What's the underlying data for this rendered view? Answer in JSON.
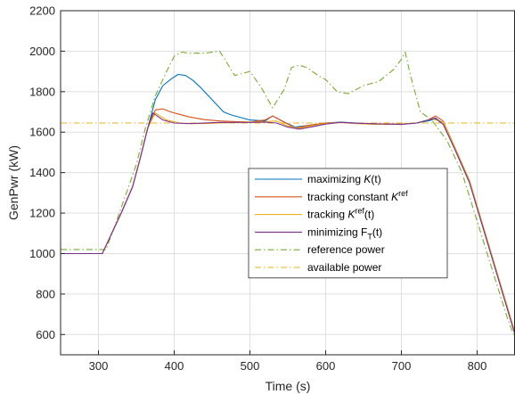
{
  "chart_data": {
    "type": "line",
    "title": "",
    "xlabel": "Time (s)",
    "ylabel": "GenPwr (kW)",
    "xlim": [
      250,
      850
    ],
    "ylim": [
      500,
      2200
    ],
    "xticks": [
      300,
      400,
      500,
      600,
      700,
      800
    ],
    "yticks": [
      600,
      800,
      1000,
      1200,
      1400,
      1600,
      1800,
      2000,
      2200
    ],
    "grid": true,
    "legend_position": "center-right",
    "series": [
      {
        "name": "maximizing K(t)",
        "legend": {
          "main": "maximizing ",
          "italic": "K",
          "tail": "(t)"
        },
        "color": "#0072BD",
        "dash": "solid",
        "x": [
          250,
          305,
          315,
          330,
          345,
          355,
          365,
          375,
          385,
          395,
          405,
          415,
          425,
          435,
          445,
          455,
          465,
          475,
          500,
          520,
          530,
          545,
          560,
          580,
          600,
          620,
          640,
          660,
          680,
          700,
          720,
          735,
          745,
          755,
          770,
          790,
          810,
          830,
          850
        ],
        "y": [
          1000,
          1000,
          1080,
          1200,
          1330,
          1470,
          1620,
          1760,
          1830,
          1860,
          1885,
          1880,
          1855,
          1820,
          1780,
          1740,
          1700,
          1685,
          1660,
          1655,
          1680,
          1650,
          1625,
          1635,
          1645,
          1650,
          1645,
          1640,
          1640,
          1640,
          1645,
          1655,
          1665,
          1640,
          1520,
          1350,
          1100,
          850,
          600
        ]
      },
      {
        "name": "tracking constant Kref",
        "legend": {
          "main": "tracking constant ",
          "italic": "K",
          "sup": "ref"
        },
        "color": "#D95319",
        "dash": "solid",
        "x": [
          250,
          305,
          315,
          330,
          345,
          355,
          365,
          375,
          385,
          395,
          405,
          420,
          440,
          460,
          480,
          500,
          520,
          530,
          545,
          560,
          580,
          600,
          620,
          640,
          660,
          680,
          700,
          720,
          735,
          745,
          755,
          770,
          790,
          810,
          830,
          850
        ],
        "y": [
          1000,
          1000,
          1080,
          1200,
          1330,
          1470,
          1620,
          1710,
          1715,
          1700,
          1690,
          1675,
          1662,
          1655,
          1652,
          1650,
          1660,
          1680,
          1650,
          1620,
          1635,
          1645,
          1648,
          1643,
          1640,
          1640,
          1638,
          1645,
          1660,
          1680,
          1655,
          1530,
          1360,
          1110,
          860,
          610
        ]
      },
      {
        "name": "tracking Kref(t)",
        "legend": {
          "main": "tracking ",
          "italic": "K",
          "sup": "ref",
          "tail": "(t)"
        },
        "color": "#EDB120",
        "dash": "solid",
        "x": [
          250,
          305,
          315,
          330,
          345,
          355,
          365,
          375,
          390,
          410,
          440,
          480,
          520,
          535,
          550,
          565,
          580,
          600,
          620,
          640,
          660,
          680,
          700,
          720,
          740,
          755,
          770,
          790,
          810,
          830,
          850
        ],
        "y": [
          1000,
          1000,
          1080,
          1200,
          1330,
          1470,
          1620,
          1695,
          1660,
          1643,
          1642,
          1648,
          1652,
          1655,
          1630,
          1618,
          1630,
          1643,
          1648,
          1642,
          1640,
          1638,
          1640,
          1645,
          1665,
          1650,
          1530,
          1360,
          1110,
          860,
          610
        ]
      },
      {
        "name": "minimizing FT(t)",
        "legend": {
          "main": "minimizing F",
          "sub": "T",
          "tail": "(t)"
        },
        "color": "#7E2F8E",
        "dash": "solid",
        "x": [
          250,
          305,
          315,
          330,
          345,
          355,
          365,
          372,
          385,
          400,
          420,
          460,
          500,
          520,
          535,
          550,
          565,
          580,
          600,
          620,
          640,
          660,
          680,
          700,
          720,
          735,
          745,
          755,
          770,
          790,
          810,
          830,
          850
        ],
        "y": [
          1000,
          1000,
          1080,
          1200,
          1330,
          1470,
          1620,
          1695,
          1660,
          1645,
          1642,
          1648,
          1648,
          1650,
          1645,
          1625,
          1615,
          1625,
          1640,
          1648,
          1644,
          1642,
          1640,
          1638,
          1645,
          1660,
          1670,
          1640,
          1520,
          1350,
          1100,
          850,
          600
        ]
      },
      {
        "name": "reference power",
        "legend": {
          "main": "reference power"
        },
        "color": "#77AC30",
        "dash": "dashdot",
        "x": [
          250,
          310,
          320,
          335,
          350,
          362,
          375,
          390,
          400,
          410,
          420,
          440,
          460,
          470,
          480,
          500,
          515,
          530,
          545,
          555,
          565,
          575,
          590,
          600,
          615,
          630,
          650,
          670,
          690,
          700,
          705,
          712,
          725,
          740,
          760,
          780,
          800,
          820,
          840,
          850
        ],
        "y": [
          1020,
          1020,
          1120,
          1280,
          1440,
          1620,
          1780,
          1900,
          1975,
          1995,
          1990,
          1990,
          2000,
          1940,
          1880,
          1900,
          1820,
          1720,
          1810,
          1920,
          1930,
          1920,
          1880,
          1860,
          1800,
          1790,
          1830,
          1850,
          1910,
          1960,
          1995,
          1880,
          1700,
          1660,
          1560,
          1400,
          1160,
          920,
          680,
          580
        ]
      },
      {
        "name": "available power",
        "legend": {
          "main": "available power"
        },
        "color": "#EDB120",
        "dash": "dashdot",
        "x": [
          250,
          850
        ],
        "y": [
          1645,
          1645
        ]
      }
    ]
  }
}
